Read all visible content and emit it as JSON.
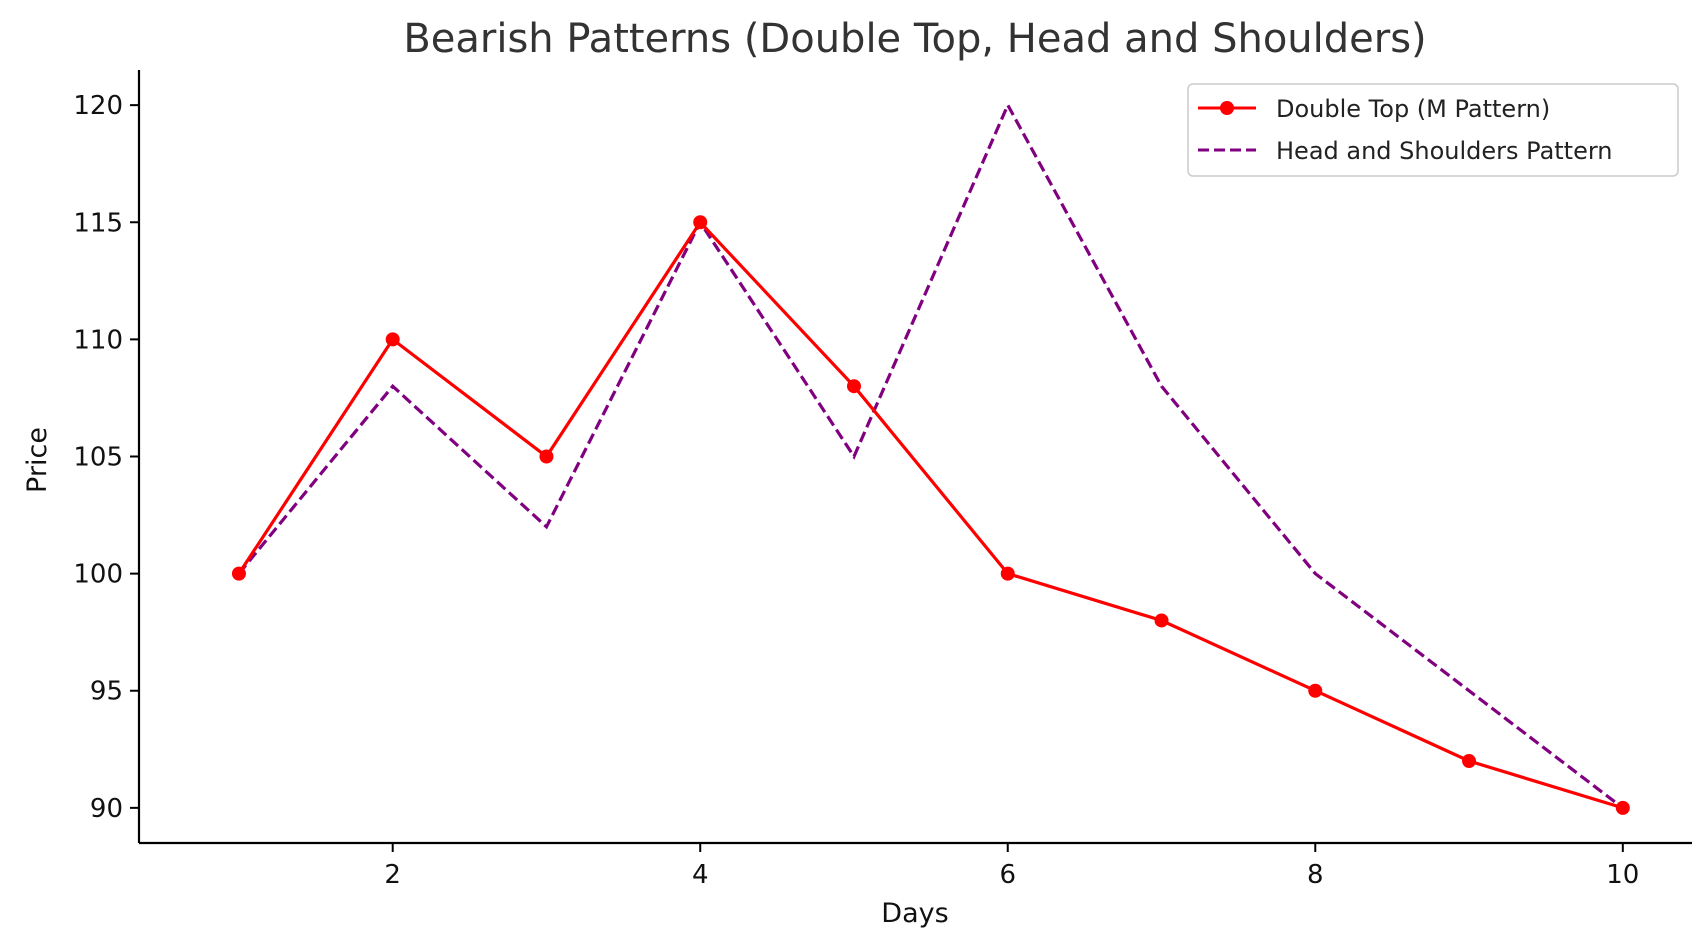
{
  "chart_data": {
    "type": "line",
    "title": "Bearish Patterns (Double Top, Head and Shoulders)",
    "xlabel": "Days",
    "ylabel": "Price",
    "x": [
      1,
      2,
      3,
      4,
      5,
      6,
      7,
      8,
      9,
      10
    ],
    "xticks": [
      2,
      4,
      6,
      8,
      10
    ],
    "yticks": [
      90,
      95,
      100,
      105,
      110,
      115,
      120
    ],
    "xlim": [
      0.35,
      10.45
    ],
    "ylim": [
      88.5,
      121.5
    ],
    "grid": false,
    "legend_position": "top-right",
    "series": [
      {
        "name": "Double Top (M Pattern)",
        "values": [
          100,
          110,
          105,
          115,
          108,
          100,
          98,
          95,
          92,
          90
        ],
        "color": "#ff0000",
        "style": "solid",
        "marker": "circle"
      },
      {
        "name": "Head and Shoulders Pattern",
        "values": [
          100,
          108,
          102,
          115,
          105,
          120,
          108,
          100,
          95,
          90
        ],
        "color": "#800080",
        "style": "dashed",
        "marker": "none"
      }
    ]
  }
}
